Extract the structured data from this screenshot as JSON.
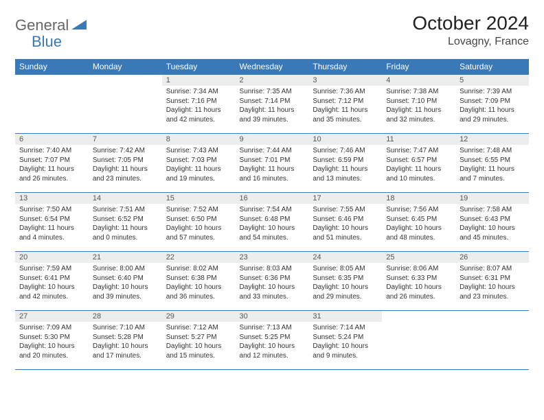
{
  "logo": {
    "text1": "General",
    "text2": "Blue"
  },
  "title": "October 2024",
  "location": "Lovagny, France",
  "colors": {
    "accent": "#3a79b7",
    "header_bg": "#3a79b7",
    "daynum_bg": "#eceded"
  },
  "weekdays": [
    "Sunday",
    "Monday",
    "Tuesday",
    "Wednesday",
    "Thursday",
    "Friday",
    "Saturday"
  ],
  "weeks": [
    [
      {
        "n": "",
        "sr": "",
        "ss": "",
        "dl": ""
      },
      {
        "n": "",
        "sr": "",
        "ss": "",
        "dl": ""
      },
      {
        "n": "1",
        "sr": "Sunrise: 7:34 AM",
        "ss": "Sunset: 7:16 PM",
        "dl": "Daylight: 11 hours and 42 minutes."
      },
      {
        "n": "2",
        "sr": "Sunrise: 7:35 AM",
        "ss": "Sunset: 7:14 PM",
        "dl": "Daylight: 11 hours and 39 minutes."
      },
      {
        "n": "3",
        "sr": "Sunrise: 7:36 AM",
        "ss": "Sunset: 7:12 PM",
        "dl": "Daylight: 11 hours and 35 minutes."
      },
      {
        "n": "4",
        "sr": "Sunrise: 7:38 AM",
        "ss": "Sunset: 7:10 PM",
        "dl": "Daylight: 11 hours and 32 minutes."
      },
      {
        "n": "5",
        "sr": "Sunrise: 7:39 AM",
        "ss": "Sunset: 7:09 PM",
        "dl": "Daylight: 11 hours and 29 minutes."
      }
    ],
    [
      {
        "n": "6",
        "sr": "Sunrise: 7:40 AM",
        "ss": "Sunset: 7:07 PM",
        "dl": "Daylight: 11 hours and 26 minutes."
      },
      {
        "n": "7",
        "sr": "Sunrise: 7:42 AM",
        "ss": "Sunset: 7:05 PM",
        "dl": "Daylight: 11 hours and 23 minutes."
      },
      {
        "n": "8",
        "sr": "Sunrise: 7:43 AM",
        "ss": "Sunset: 7:03 PM",
        "dl": "Daylight: 11 hours and 19 minutes."
      },
      {
        "n": "9",
        "sr": "Sunrise: 7:44 AM",
        "ss": "Sunset: 7:01 PM",
        "dl": "Daylight: 11 hours and 16 minutes."
      },
      {
        "n": "10",
        "sr": "Sunrise: 7:46 AM",
        "ss": "Sunset: 6:59 PM",
        "dl": "Daylight: 11 hours and 13 minutes."
      },
      {
        "n": "11",
        "sr": "Sunrise: 7:47 AM",
        "ss": "Sunset: 6:57 PM",
        "dl": "Daylight: 11 hours and 10 minutes."
      },
      {
        "n": "12",
        "sr": "Sunrise: 7:48 AM",
        "ss": "Sunset: 6:55 PM",
        "dl": "Daylight: 11 hours and 7 minutes."
      }
    ],
    [
      {
        "n": "13",
        "sr": "Sunrise: 7:50 AM",
        "ss": "Sunset: 6:54 PM",
        "dl": "Daylight: 11 hours and 4 minutes."
      },
      {
        "n": "14",
        "sr": "Sunrise: 7:51 AM",
        "ss": "Sunset: 6:52 PM",
        "dl": "Daylight: 11 hours and 0 minutes."
      },
      {
        "n": "15",
        "sr": "Sunrise: 7:52 AM",
        "ss": "Sunset: 6:50 PM",
        "dl": "Daylight: 10 hours and 57 minutes."
      },
      {
        "n": "16",
        "sr": "Sunrise: 7:54 AM",
        "ss": "Sunset: 6:48 PM",
        "dl": "Daylight: 10 hours and 54 minutes."
      },
      {
        "n": "17",
        "sr": "Sunrise: 7:55 AM",
        "ss": "Sunset: 6:46 PM",
        "dl": "Daylight: 10 hours and 51 minutes."
      },
      {
        "n": "18",
        "sr": "Sunrise: 7:56 AM",
        "ss": "Sunset: 6:45 PM",
        "dl": "Daylight: 10 hours and 48 minutes."
      },
      {
        "n": "19",
        "sr": "Sunrise: 7:58 AM",
        "ss": "Sunset: 6:43 PM",
        "dl": "Daylight: 10 hours and 45 minutes."
      }
    ],
    [
      {
        "n": "20",
        "sr": "Sunrise: 7:59 AM",
        "ss": "Sunset: 6:41 PM",
        "dl": "Daylight: 10 hours and 42 minutes."
      },
      {
        "n": "21",
        "sr": "Sunrise: 8:00 AM",
        "ss": "Sunset: 6:40 PM",
        "dl": "Daylight: 10 hours and 39 minutes."
      },
      {
        "n": "22",
        "sr": "Sunrise: 8:02 AM",
        "ss": "Sunset: 6:38 PM",
        "dl": "Daylight: 10 hours and 36 minutes."
      },
      {
        "n": "23",
        "sr": "Sunrise: 8:03 AM",
        "ss": "Sunset: 6:36 PM",
        "dl": "Daylight: 10 hours and 33 minutes."
      },
      {
        "n": "24",
        "sr": "Sunrise: 8:05 AM",
        "ss": "Sunset: 6:35 PM",
        "dl": "Daylight: 10 hours and 29 minutes."
      },
      {
        "n": "25",
        "sr": "Sunrise: 8:06 AM",
        "ss": "Sunset: 6:33 PM",
        "dl": "Daylight: 10 hours and 26 minutes."
      },
      {
        "n": "26",
        "sr": "Sunrise: 8:07 AM",
        "ss": "Sunset: 6:31 PM",
        "dl": "Daylight: 10 hours and 23 minutes."
      }
    ],
    [
      {
        "n": "27",
        "sr": "Sunrise: 7:09 AM",
        "ss": "Sunset: 5:30 PM",
        "dl": "Daylight: 10 hours and 20 minutes."
      },
      {
        "n": "28",
        "sr": "Sunrise: 7:10 AM",
        "ss": "Sunset: 5:28 PM",
        "dl": "Daylight: 10 hours and 17 minutes."
      },
      {
        "n": "29",
        "sr": "Sunrise: 7:12 AM",
        "ss": "Sunset: 5:27 PM",
        "dl": "Daylight: 10 hours and 15 minutes."
      },
      {
        "n": "30",
        "sr": "Sunrise: 7:13 AM",
        "ss": "Sunset: 5:25 PM",
        "dl": "Daylight: 10 hours and 12 minutes."
      },
      {
        "n": "31",
        "sr": "Sunrise: 7:14 AM",
        "ss": "Sunset: 5:24 PM",
        "dl": "Daylight: 10 hours and 9 minutes."
      },
      {
        "n": "",
        "sr": "",
        "ss": "",
        "dl": ""
      },
      {
        "n": "",
        "sr": "",
        "ss": "",
        "dl": ""
      }
    ]
  ]
}
